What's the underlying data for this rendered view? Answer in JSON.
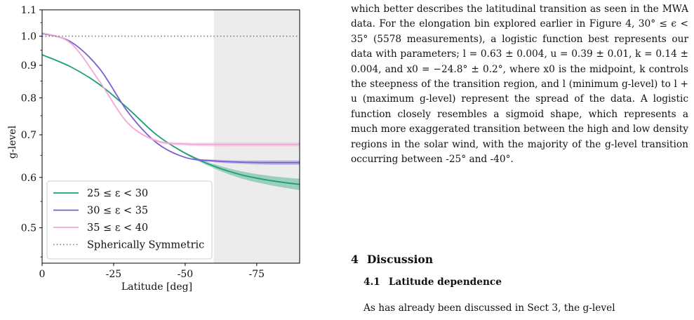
{
  "chart_data": {
    "type": "line",
    "xlabel": "Latitude [deg]",
    "ylabel": "g-level",
    "xlim": [
      0,
      -90
    ],
    "ylim": [
      0.44,
      1.1
    ],
    "yscale": "log",
    "x_ticks": [
      "0",
      "-25",
      "-50",
      "-75"
    ],
    "x_tick_values": [
      0,
      -25,
      -50,
      -75
    ],
    "y_ticks": [
      "0.5",
      "0.6",
      "0.7",
      "0.8",
      "0.9",
      "1.0",
      "1.1"
    ],
    "y_tick_values": [
      0.5,
      0.6,
      0.7,
      0.8,
      0.9,
      1.0,
      1.1
    ],
    "shaded_region": {
      "x_range": [
        -60,
        -90
      ],
      "color": "#ececec"
    },
    "legend_position": "lower-left",
    "series": [
      {
        "name": "25 ≤ ε < 30",
        "color": "#1b9e77",
        "style": "solid",
        "x": [
          0,
          -10,
          -20,
          -30,
          -40,
          -50,
          -60,
          -70,
          -80,
          -90
        ],
        "y": [
          0.935,
          0.895,
          0.84,
          0.77,
          0.7,
          0.655,
          0.625,
          0.605,
          0.593,
          0.585
        ],
        "band_halfwidth": [
          0.0,
          0.0,
          0.0,
          0.0,
          0.0,
          0.002,
          0.005,
          0.008,
          0.01,
          0.012
        ]
      },
      {
        "name": "30 ≤ ε < 35",
        "color": "#7b5fd3",
        "style": "solid",
        "x": [
          0,
          -10,
          -20,
          -30,
          -40,
          -50,
          -60,
          -70,
          -80,
          -90
        ],
        "y": [
          1.01,
          0.98,
          0.89,
          0.76,
          0.68,
          0.645,
          0.637,
          0.634,
          0.633,
          0.633
        ],
        "band_halfwidth": [
          0.0,
          0.0,
          0.0,
          0.0,
          0.0,
          0.001,
          0.003,
          0.004,
          0.005,
          0.005
        ]
      },
      {
        "name": "35 ≤ ε < 40",
        "color": "#f4a6d7",
        "style": "solid",
        "x": [
          0,
          -10,
          -20,
          -30,
          -40,
          -50,
          -60,
          -70,
          -80,
          -90
        ],
        "y": [
          1.012,
          0.975,
          0.85,
          0.73,
          0.685,
          0.677,
          0.676,
          0.676,
          0.676,
          0.676
        ],
        "band_halfwidth": [
          0.0,
          0.0,
          0.0,
          0.0,
          0.003,
          0.004,
          0.005,
          0.005,
          0.005,
          0.005
        ]
      },
      {
        "name": "Spherically Symmetric",
        "color": "#777777",
        "style": "dotted",
        "x": [
          0,
          -90
        ],
        "y": [
          1.0,
          1.0
        ]
      }
    ]
  },
  "text": {
    "paragraph": "which better describes the latitudinal transition as seen in the MWA data. For the elongation bin explored earlier in Figure 4, 30° ≤ ϵ < 35° (5578 measurements), a logistic function best represents our data with parameters; l = 0.63 ± 0.004, u = 0.39 ± 0.01, k = 0.14 ± 0.004, and x0 = −24.8° ± 0.2°, where x0 is the midpoint, k controls the steepness of the transition region, and l (minimum g-level) to l + u (maximum g-level) represent the spread of the data. A logistic function closely resembles a sigmoid shape, which represents a much more exaggerated transition between the high and low density regions in the solar wind, with the majority of the g-level transition occurring between -25° and -40°.",
    "section_number": "4",
    "section_title": "Discussion",
    "subsection_number": "4.1",
    "subsection_title": "Latitude dependence",
    "last_line": "As has already been discussed in Sect 3, the g-level"
  }
}
